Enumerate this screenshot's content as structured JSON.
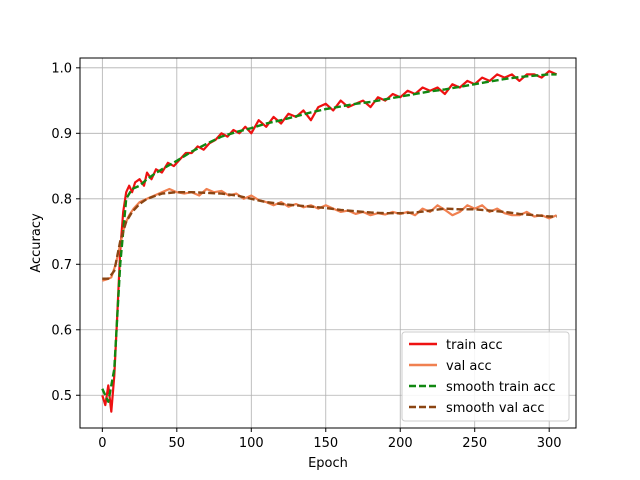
{
  "chart_data": {
    "type": "line",
    "title": "",
    "xlabel": "Epoch",
    "ylabel": "Accuracy",
    "xlim": [
      -15,
      318
    ],
    "ylim": [
      0.45,
      1.015
    ],
    "xticks": [
      0,
      50,
      100,
      150,
      200,
      250,
      300
    ],
    "yticks": [
      0.5,
      0.6,
      0.7,
      0.8,
      0.9,
      1.0
    ],
    "xtick_labels": [
      "0",
      "50",
      "100",
      "150",
      "200",
      "250",
      "300"
    ],
    "ytick_labels": [
      "0.5",
      "0.6",
      "0.7",
      "0.8",
      "0.9",
      "1.0"
    ],
    "grid": true,
    "legend_position": "lower-right",
    "series": [
      {
        "name": "train acc",
        "color": "#ee1111",
        "style": "solid",
        "x": [
          0,
          2,
          4,
          6,
          8,
          10,
          12,
          14,
          16,
          18,
          20,
          22,
          25,
          28,
          30,
          33,
          36,
          40,
          44,
          48,
          52,
          56,
          60,
          64,
          68,
          72,
          76,
          80,
          84,
          88,
          92,
          96,
          100,
          105,
          110,
          115,
          120,
          125,
          130,
          135,
          140,
          145,
          150,
          155,
          160,
          165,
          170,
          175,
          180,
          185,
          190,
          195,
          200,
          205,
          210,
          215,
          220,
          225,
          230,
          235,
          240,
          245,
          250,
          255,
          260,
          265,
          270,
          275,
          280,
          285,
          290,
          295,
          300,
          305
        ],
        "y": [
          0.5,
          0.485,
          0.515,
          0.475,
          0.53,
          0.62,
          0.72,
          0.78,
          0.81,
          0.82,
          0.81,
          0.825,
          0.83,
          0.82,
          0.84,
          0.83,
          0.845,
          0.84,
          0.855,
          0.85,
          0.86,
          0.87,
          0.87,
          0.88,
          0.875,
          0.885,
          0.89,
          0.9,
          0.895,
          0.905,
          0.9,
          0.91,
          0.9,
          0.92,
          0.91,
          0.925,
          0.915,
          0.93,
          0.925,
          0.935,
          0.92,
          0.94,
          0.945,
          0.935,
          0.95,
          0.94,
          0.945,
          0.95,
          0.94,
          0.955,
          0.95,
          0.96,
          0.955,
          0.965,
          0.96,
          0.97,
          0.965,
          0.97,
          0.96,
          0.975,
          0.97,
          0.98,
          0.975,
          0.985,
          0.98,
          0.99,
          0.985,
          0.99,
          0.98,
          0.99,
          0.99,
          0.985,
          0.995,
          0.99
        ]
      },
      {
        "name": "val acc",
        "color": "#f08050",
        "style": "solid",
        "x": [
          0,
          3,
          6,
          9,
          12,
          15,
          18,
          21,
          25,
          30,
          35,
          40,
          45,
          50,
          55,
          60,
          65,
          70,
          75,
          80,
          85,
          90,
          95,
          100,
          105,
          110,
          115,
          120,
          125,
          130,
          135,
          140,
          145,
          150,
          155,
          160,
          165,
          170,
          175,
          180,
          185,
          190,
          195,
          200,
          205,
          210,
          215,
          220,
          225,
          230,
          235,
          240,
          245,
          250,
          255,
          260,
          265,
          270,
          275,
          280,
          285,
          290,
          295,
          300,
          305
        ],
        "y": [
          0.675,
          0.677,
          0.68,
          0.7,
          0.73,
          0.76,
          0.775,
          0.785,
          0.795,
          0.8,
          0.805,
          0.81,
          0.815,
          0.81,
          0.808,
          0.81,
          0.805,
          0.815,
          0.81,
          0.812,
          0.805,
          0.808,
          0.8,
          0.805,
          0.798,
          0.795,
          0.79,
          0.795,
          0.788,
          0.792,
          0.787,
          0.79,
          0.785,
          0.79,
          0.785,
          0.78,
          0.782,
          0.777,
          0.78,
          0.775,
          0.778,
          0.776,
          0.78,
          0.777,
          0.78,
          0.775,
          0.785,
          0.78,
          0.79,
          0.783,
          0.775,
          0.78,
          0.79,
          0.785,
          0.79,
          0.78,
          0.785,
          0.778,
          0.775,
          0.775,
          0.78,
          0.773,
          0.775,
          0.77,
          0.775
        ]
      },
      {
        "name": "smooth train acc",
        "color": "#118811",
        "style": "dashed",
        "x": [
          0,
          4,
          8,
          12,
          16,
          20,
          25,
          30,
          35,
          40,
          50,
          60,
          70,
          80,
          90,
          100,
          110,
          120,
          130,
          140,
          150,
          160,
          170,
          180,
          190,
          200,
          210,
          220,
          230,
          240,
          250,
          260,
          270,
          280,
          290,
          300,
          305
        ],
        "y": [
          0.51,
          0.49,
          0.54,
          0.7,
          0.8,
          0.815,
          0.82,
          0.83,
          0.838,
          0.845,
          0.858,
          0.872,
          0.884,
          0.895,
          0.902,
          0.908,
          0.915,
          0.92,
          0.926,
          0.932,
          0.937,
          0.941,
          0.945,
          0.948,
          0.952,
          0.956,
          0.96,
          0.964,
          0.967,
          0.971,
          0.975,
          0.979,
          0.983,
          0.986,
          0.988,
          0.99,
          0.99
        ]
      },
      {
        "name": "smooth val acc",
        "color": "#8b4513",
        "style": "dashed",
        "x": [
          0,
          4,
          8,
          12,
          16,
          20,
          25,
          30,
          40,
          50,
          60,
          70,
          80,
          90,
          100,
          110,
          120,
          130,
          140,
          150,
          160,
          170,
          180,
          190,
          200,
          210,
          220,
          230,
          240,
          250,
          260,
          270,
          280,
          290,
          300,
          305
        ],
        "y": [
          0.678,
          0.678,
          0.69,
          0.735,
          0.765,
          0.78,
          0.792,
          0.8,
          0.808,
          0.81,
          0.81,
          0.809,
          0.808,
          0.805,
          0.8,
          0.795,
          0.792,
          0.79,
          0.788,
          0.786,
          0.783,
          0.781,
          0.779,
          0.778,
          0.778,
          0.779,
          0.782,
          0.785,
          0.784,
          0.784,
          0.782,
          0.78,
          0.777,
          0.775,
          0.773,
          0.773
        ]
      }
    ]
  }
}
